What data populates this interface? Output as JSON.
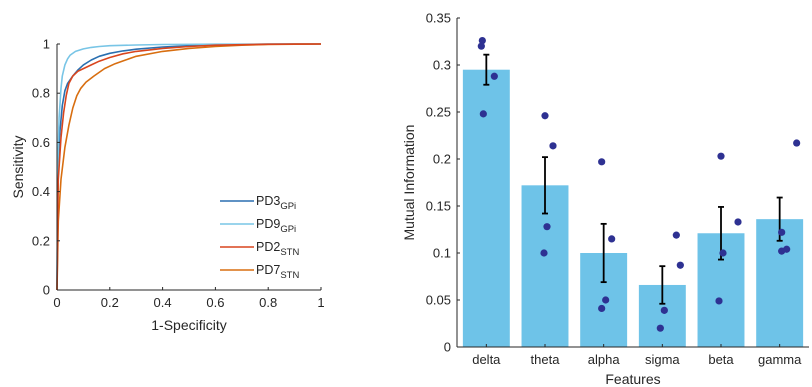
{
  "chart_data": [
    {
      "type": "line",
      "title": "",
      "xlabel": "1-Specificity",
      "ylabel": "Sensitivity",
      "xlim": [
        0,
        1
      ],
      "ylim": [
        0,
        1
      ],
      "xticks": [
        "0",
        "0.2",
        "0.4",
        "0.6",
        "0.8",
        "1"
      ],
      "yticks": [
        "0",
        "0.2",
        "0.4",
        "0.6",
        "0.8",
        "1"
      ],
      "grid": false,
      "legend_position": "bottom-right",
      "series": [
        {
          "name": "PD3",
          "subscript": "GPi",
          "color": "#2a6fb0",
          "x": [
            0,
            0.003,
            0.01,
            0.02,
            0.03,
            0.04,
            0.06,
            0.08,
            0.1,
            0.13,
            0.16,
            0.2,
            0.25,
            0.3,
            0.4,
            0.5,
            0.6,
            0.7,
            0.8,
            0.9,
            1
          ],
          "y": [
            0,
            0.45,
            0.63,
            0.75,
            0.81,
            0.84,
            0.87,
            0.895,
            0.915,
            0.935,
            0.95,
            0.962,
            0.972,
            0.979,
            0.988,
            0.993,
            0.996,
            0.998,
            0.999,
            0.9995,
            1
          ]
        },
        {
          "name": "PD9",
          "subscript": "GPi",
          "color": "#78c5e6",
          "x": [
            0,
            0.003,
            0.008,
            0.015,
            0.02,
            0.03,
            0.04,
            0.05,
            0.07,
            0.1,
            0.13,
            0.16,
            0.2,
            0.3,
            0.4,
            0.6,
            0.8,
            1
          ],
          "y": [
            0,
            0.5,
            0.7,
            0.82,
            0.87,
            0.915,
            0.94,
            0.955,
            0.97,
            0.98,
            0.986,
            0.99,
            0.993,
            0.996,
            0.998,
            0.999,
            0.9995,
            1
          ]
        },
        {
          "name": "PD2",
          "subscript": "STN",
          "color": "#d9451e",
          "x": [
            0,
            0.005,
            0.015,
            0.025,
            0.035,
            0.045,
            0.06,
            0.08,
            0.1,
            0.13,
            0.16,
            0.2,
            0.25,
            0.3,
            0.4,
            0.5,
            0.6,
            0.7,
            0.8,
            0.9,
            1
          ],
          "y": [
            0,
            0.45,
            0.62,
            0.72,
            0.79,
            0.84,
            0.87,
            0.89,
            0.9,
            0.915,
            0.93,
            0.945,
            0.96,
            0.97,
            0.982,
            0.99,
            0.995,
            0.997,
            0.999,
            0.9995,
            1
          ]
        },
        {
          "name": "PD7",
          "subscript": "STN",
          "color": "#d86e10",
          "x": [
            0,
            0.005,
            0.015,
            0.03,
            0.045,
            0.06,
            0.075,
            0.09,
            0.11,
            0.14,
            0.18,
            0.22,
            0.26,
            0.3,
            0.4,
            0.5,
            0.6,
            0.7,
            0.8,
            0.9,
            1
          ],
          "y": [
            0,
            0.28,
            0.45,
            0.58,
            0.67,
            0.74,
            0.79,
            0.82,
            0.845,
            0.87,
            0.9,
            0.92,
            0.935,
            0.95,
            0.97,
            0.982,
            0.99,
            0.995,
            0.998,
            0.999,
            1
          ]
        }
      ]
    },
    {
      "type": "bar",
      "title": "",
      "xlabel": "Features",
      "ylabel": "Mutual Information",
      "categories": [
        "delta",
        "theta",
        "alpha",
        "sigma",
        "beta",
        "gamma"
      ],
      "values": [
        0.295,
        0.172,
        0.1,
        0.066,
        0.121,
        0.136
      ],
      "errors": [
        0.016,
        0.03,
        0.031,
        0.02,
        0.028,
        0.023
      ],
      "points": [
        [
          0.326,
          0.32,
          0.288,
          0.248
        ],
        [
          0.246,
          0.214,
          0.128,
          0.1
        ],
        [
          0.197,
          0.115,
          0.05,
          0.041
        ],
        [
          0.119,
          0.087,
          0.039,
          0.02
        ],
        [
          0.203,
          0.133,
          0.1,
          0.049
        ],
        [
          0.217,
          0.122,
          0.104,
          0.102
        ]
      ],
      "ylim": [
        0,
        0.35
      ],
      "yticks": [
        "0",
        "0.05",
        "0.1",
        "0.15",
        "0.2",
        "0.25",
        "0.3",
        "0.35"
      ],
      "grid": false,
      "bar_color": "#6ec3e8",
      "point_color": "#2e3192",
      "error_color": "#000000"
    }
  ]
}
